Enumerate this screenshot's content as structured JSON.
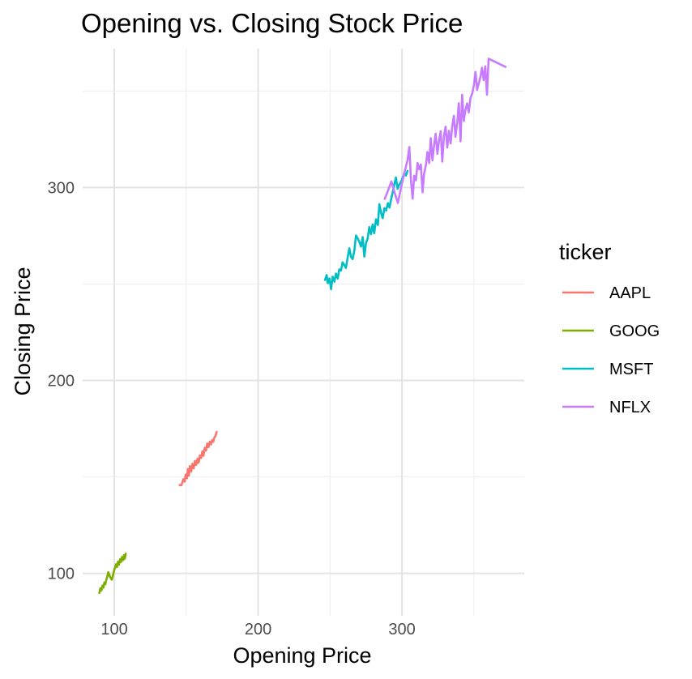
{
  "chart_data": {
    "type": "line",
    "title": "Opening vs. Closing Stock Price",
    "xlabel": "Opening Price",
    "ylabel": "Closing Price",
    "xlim": [
      78,
      385
    ],
    "ylim": [
      78,
      372
    ],
    "x_ticks": [
      100,
      200,
      300
    ],
    "y_ticks": [
      100,
      200,
      300
    ],
    "x_tick_labels": [
      "100",
      "200",
      "300"
    ],
    "y_tick_labels": [
      "100",
      "200",
      "300"
    ],
    "grid": true,
    "legend": {
      "title": "ticker",
      "position": "right"
    },
    "series": [
      {
        "name": "AAPL",
        "color": "#F8766D",
        "points": [
          [
            145.4,
            145.8
          ],
          [
            146.6,
            145.6
          ],
          [
            148.1,
            148.8
          ],
          [
            148.9,
            147.5
          ],
          [
            149.6,
            151.2
          ],
          [
            150.5,
            149.3
          ],
          [
            151.2,
            154.1
          ],
          [
            151.9,
            150.7
          ],
          [
            152.6,
            155.6
          ],
          [
            153.5,
            152.9
          ],
          [
            154.3,
            156.8
          ],
          [
            155.2,
            154.4
          ],
          [
            156.1,
            158.3
          ],
          [
            157.0,
            156.2
          ],
          [
            157.8,
            159.4
          ],
          [
            158.6,
            157.3
          ],
          [
            159.5,
            161.1
          ],
          [
            160.4,
            159.8
          ],
          [
            161.2,
            163.2
          ],
          [
            162.0,
            160.9
          ],
          [
            162.9,
            165.1
          ],
          [
            163.8,
            163.7
          ],
          [
            164.6,
            167.3
          ],
          [
            165.5,
            165.4
          ],
          [
            166.3,
            168.2
          ],
          [
            167.2,
            166.8
          ],
          [
            168.0,
            169.1
          ],
          [
            168.8,
            168.2
          ],
          [
            169.6,
            170.5
          ],
          [
            170.4,
            171.2
          ],
          [
            171.1,
            173.3
          ]
        ]
      },
      {
        "name": "GOOG",
        "color": "#7CAE00",
        "points": [
          [
            89.6,
            89.8
          ],
          [
            90.3,
            92.2
          ],
          [
            91.0,
            91.1
          ],
          [
            91.8,
            93.7
          ],
          [
            92.4,
            92.6
          ],
          [
            93.1,
            95.2
          ],
          [
            93.8,
            94.4
          ],
          [
            94.5,
            96.9
          ],
          [
            95.1,
            98.3
          ],
          [
            95.8,
            100.6
          ],
          [
            96.6,
            99.1
          ],
          [
            97.4,
            97.8
          ],
          [
            98.2,
            96.7
          ],
          [
            99.0,
            98.6
          ],
          [
            99.8,
            101.4
          ],
          [
            100.5,
            102.8
          ],
          [
            101.2,
            104.7
          ],
          [
            101.9,
            103.3
          ],
          [
            102.6,
            106.1
          ],
          [
            103.3,
            104.5
          ],
          [
            104.0,
            107.3
          ],
          [
            104.7,
            105.9
          ],
          [
            105.4,
            108.5
          ],
          [
            106.1,
            106.8
          ],
          [
            106.7,
            109.4
          ],
          [
            107.3,
            107.6
          ],
          [
            107.9,
            110.2
          ]
        ]
      },
      {
        "name": "MSFT",
        "color": "#00BFC4",
        "points": [
          [
            246.5,
            252.1
          ],
          [
            247.6,
            254.6
          ],
          [
            248.4,
            250.4
          ],
          [
            249.5,
            252.9
          ],
          [
            250.7,
            247.3
          ],
          [
            251.8,
            253.8
          ],
          [
            253.0,
            251.2
          ],
          [
            254.1,
            255.4
          ],
          [
            255.3,
            252.8
          ],
          [
            256.4,
            257.6
          ],
          [
            257.6,
            256.9
          ],
          [
            258.7,
            261.2
          ],
          [
            259.9,
            259.8
          ],
          [
            261.0,
            258.3
          ],
          [
            262.2,
            263.7
          ],
          [
            263.4,
            268.5
          ],
          [
            264.5,
            264.1
          ],
          [
            265.7,
            262.9
          ],
          [
            266.9,
            267.2
          ],
          [
            268.0,
            275.1
          ],
          [
            269.2,
            273.6
          ],
          [
            270.4,
            271.7
          ],
          [
            271.5,
            269.4
          ],
          [
            272.7,
            274.3
          ],
          [
            273.8,
            264.2
          ],
          [
            275.0,
            271.3
          ],
          [
            276.1,
            273.5
          ],
          [
            277.3,
            279.5
          ],
          [
            278.5,
            275.8
          ],
          [
            279.6,
            280.9
          ],
          [
            280.7,
            276.3
          ],
          [
            281.9,
            283.5
          ],
          [
            283.2,
            280.6
          ],
          [
            284.3,
            291.4
          ],
          [
            285.5,
            286.7
          ],
          [
            286.6,
            284.1
          ],
          [
            287.8,
            289.3
          ],
          [
            289.0,
            288.1
          ],
          [
            290.2,
            291.9
          ],
          [
            291.3,
            289.6
          ],
          [
            292.4,
            293.8
          ],
          [
            293.5,
            297.4
          ],
          [
            294.7,
            301.8
          ],
          [
            295.8,
            305.2
          ],
          [
            296.9,
            299.3
          ],
          [
            298.0,
            301.5
          ],
          [
            299.2,
            302.8
          ],
          [
            300.4,
            304.9
          ],
          [
            301.5,
            307.3
          ],
          [
            302.7,
            306.2
          ],
          [
            303.8,
            308.6
          ]
        ]
      },
      {
        "name": "NFLX",
        "color": "#C77CFF",
        "points": [
          [
            288.0,
            294.1
          ],
          [
            290.3,
            298.4
          ],
          [
            292.6,
            303.2
          ],
          [
            294.8,
            297.5
          ],
          [
            297.1,
            292.0
          ],
          [
            299.3,
            299.8
          ],
          [
            301.6,
            307.4
          ],
          [
            303.8,
            314.1
          ],
          [
            305.1,
            321.0
          ],
          [
            306.2,
            304.3
          ],
          [
            307.4,
            294.2
          ],
          [
            308.5,
            306.1
          ],
          [
            309.7,
            303.7
          ],
          [
            310.8,
            312.8
          ],
          [
            312.0,
            309.4
          ],
          [
            313.1,
            311.9
          ],
          [
            314.3,
            297.5
          ],
          [
            315.4,
            307.2
          ],
          [
            316.6,
            311.6
          ],
          [
            317.7,
            318.4
          ],
          [
            318.9,
            312.7
          ],
          [
            320.0,
            325.6
          ],
          [
            321.2,
            314.1
          ],
          [
            322.3,
            321.8
          ],
          [
            323.4,
            327.9
          ],
          [
            324.6,
            317.5
          ],
          [
            325.7,
            324.1
          ],
          [
            326.9,
            329.2
          ],
          [
            328.0,
            313.4
          ],
          [
            329.2,
            326.8
          ],
          [
            330.3,
            331.5
          ],
          [
            331.5,
            320.7
          ],
          [
            332.6,
            329.4
          ],
          [
            333.8,
            322.8
          ],
          [
            334.9,
            331.9
          ],
          [
            336.1,
            337.2
          ],
          [
            337.2,
            326.3
          ],
          [
            338.4,
            333.8
          ],
          [
            339.5,
            343.7
          ],
          [
            340.7,
            323.9
          ],
          [
            341.8,
            348.1
          ],
          [
            343.0,
            334.5
          ],
          [
            344.1,
            340.2
          ],
          [
            345.3,
            343.6
          ],
          [
            346.4,
            338.9
          ],
          [
            347.6,
            346.3
          ],
          [
            348.8,
            348.7
          ],
          [
            349.9,
            352.5
          ],
          [
            351.1,
            359.9
          ],
          [
            352.2,
            350.6
          ],
          [
            353.3,
            353.8
          ],
          [
            354.5,
            357.4
          ],
          [
            355.6,
            362.1
          ],
          [
            356.8,
            355.6
          ],
          [
            357.9,
            362.8
          ],
          [
            359.1,
            348.1
          ],
          [
            360.2,
            366.8
          ],
          [
            372.0,
            362.5
          ]
        ]
      }
    ]
  }
}
